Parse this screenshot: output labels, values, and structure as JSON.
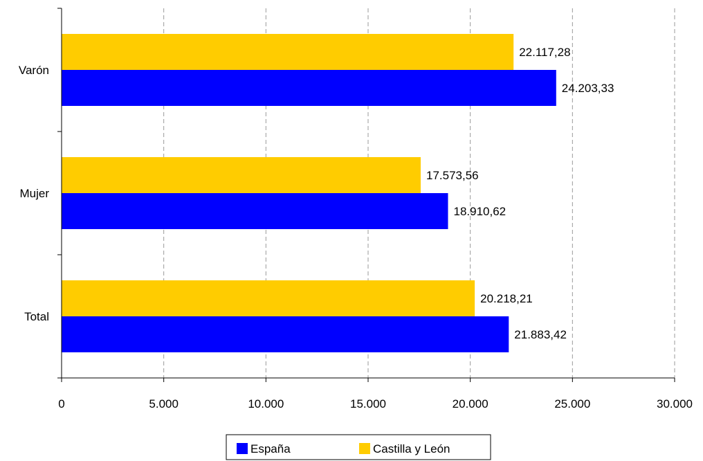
{
  "chart_data": {
    "type": "bar",
    "orientation": "horizontal",
    "categories": [
      "Varón",
      "Mujer",
      "Total"
    ],
    "series": [
      {
        "name": "Castilla y León",
        "color": "#FFCC00",
        "values": [
          22117.28,
          17573.56,
          20218.21
        ],
        "labels": [
          "22.117,28",
          "17.573,56",
          "20.218,21"
        ]
      },
      {
        "name": "España",
        "color": "#0000FF",
        "values": [
          24203.33,
          18910.62,
          21883.42
        ],
        "labels": [
          "24.203,33",
          "18.910,62",
          "21.883,42"
        ]
      }
    ],
    "xlim": [
      0,
      30000
    ],
    "xticks": [
      0,
      5000,
      10000,
      15000,
      20000,
      25000,
      30000
    ],
    "xtick_labels": [
      "0",
      "5.000",
      "10.000",
      "15.000",
      "20.000",
      "25.000",
      "30.000"
    ],
    "grid": "vertical-dashed",
    "legend": {
      "position": "bottom",
      "entries": [
        {
          "name": "España",
          "color": "#0000FF"
        },
        {
          "name": "Castilla y León",
          "color": "#FFCC00"
        }
      ]
    }
  }
}
